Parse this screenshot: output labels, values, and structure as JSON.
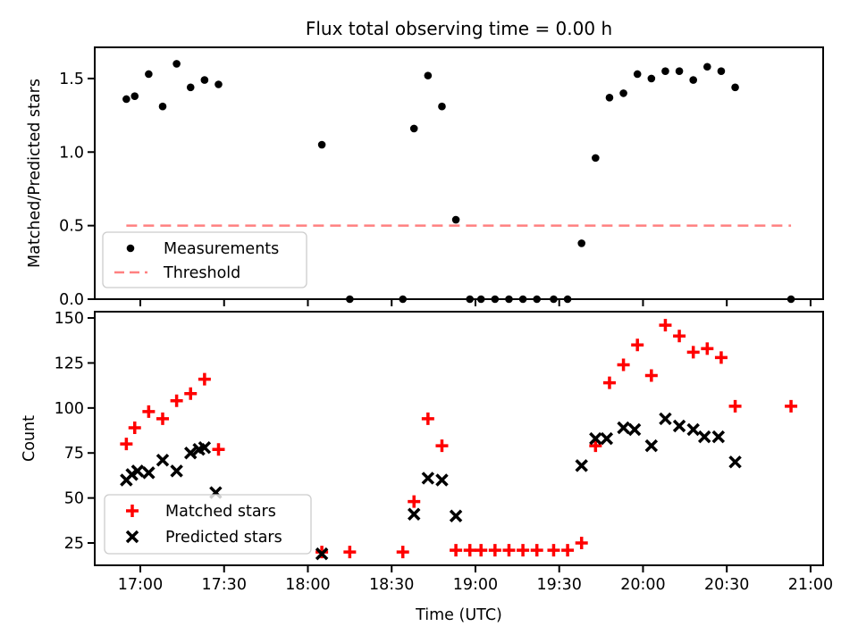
{
  "figure_title": "Flux total observing time = 0.00 h",
  "colors": {
    "measurement": "#000000",
    "threshold": "#ff8080",
    "matched": "#ff0000",
    "predicted": "#000000",
    "axis": "#000000",
    "legend_border": "#cccccc"
  },
  "x_axis": {
    "label": "Time (UTC)",
    "ticks": [
      "17:00",
      "17:30",
      "18:00",
      "18:30",
      "19:00",
      "19:30",
      "20:00",
      "20:30",
      "21:00"
    ]
  },
  "chart_data": [
    {
      "type": "scatter",
      "title": "Flux total observing time = 0.00 h",
      "ylabel": "Matched/Predicted stars",
      "xlim_hours": [
        16.728,
        21.075
      ],
      "ylim": [
        0,
        1.712
      ],
      "ytick_values": [
        0.0,
        0.5,
        1.0,
        1.5
      ],
      "ytick_labels": [
        "0.0",
        "0.5",
        "1.0",
        "1.5"
      ],
      "grid": false,
      "legend_position": "lower left",
      "series": [
        {
          "name": "Measurements",
          "marker": "point",
          "color": "#000000",
          "points": [
            [
              "16:55",
              1.36
            ],
            [
              "16:58",
              1.38
            ],
            [
              "17:03",
              1.53
            ],
            [
              "17:08",
              1.31
            ],
            [
              "17:13",
              1.6
            ],
            [
              "17:18",
              1.44
            ],
            [
              "17:23",
              1.49
            ],
            [
              "17:28",
              1.46
            ],
            [
              "18:05",
              1.05
            ],
            [
              "18:15",
              0.0
            ],
            [
              "18:34",
              0.0
            ],
            [
              "18:38",
              1.16
            ],
            [
              "18:43",
              1.52
            ],
            [
              "18:48",
              1.31
            ],
            [
              "18:53",
              0.54
            ],
            [
              "18:58",
              0.0
            ],
            [
              "19:02",
              0.0
            ],
            [
              "19:07",
              0.0
            ],
            [
              "19:12",
              0.0
            ],
            [
              "19:17",
              0.0
            ],
            [
              "19:22",
              0.0
            ],
            [
              "19:28",
              0.0
            ],
            [
              "19:33",
              0.0
            ],
            [
              "19:38",
              0.38
            ],
            [
              "19:43",
              0.96
            ],
            [
              "19:48",
              1.37
            ],
            [
              "19:53",
              1.4
            ],
            [
              "19:58",
              1.53
            ],
            [
              "20:03",
              1.5
            ],
            [
              "20:08",
              1.55
            ],
            [
              "20:13",
              1.55
            ],
            [
              "20:18",
              1.49
            ],
            [
              "20:23",
              1.58
            ],
            [
              "20:28",
              1.55
            ],
            [
              "20:33",
              1.44
            ],
            [
              "20:53",
              0.0
            ]
          ]
        },
        {
          "name": "Threshold",
          "marker": "dashed-line",
          "color": "#ff8080",
          "hline": 0.5,
          "span": [
            "16:55",
            "20:53"
          ]
        }
      ]
    },
    {
      "type": "scatter",
      "title": "",
      "ylabel": "Count",
      "xlabel": "Time (UTC)",
      "xlim_hours": [
        16.728,
        21.075
      ],
      "ylim": [
        12.6,
        153.5
      ],
      "ytick_values": [
        25,
        50,
        75,
        100,
        125,
        150
      ],
      "ytick_labels": [
        "25",
        "50",
        "75",
        "100",
        "125",
        "150"
      ],
      "grid": false,
      "legend_position": "lower left",
      "series": [
        {
          "name": "Matched stars",
          "marker": "plus",
          "color": "#ff0000",
          "points": [
            [
              "16:55",
              80
            ],
            [
              "16:58",
              89
            ],
            [
              "17:03",
              98
            ],
            [
              "17:08",
              94
            ],
            [
              "17:13",
              104
            ],
            [
              "17:18",
              108
            ],
            [
              "17:23",
              116
            ],
            [
              "17:28",
              77
            ],
            [
              "18:05",
              20
            ],
            [
              "18:15",
              20
            ],
            [
              "18:34",
              20
            ],
            [
              "18:38",
              48
            ],
            [
              "18:43",
              94
            ],
            [
              "18:48",
              79
            ],
            [
              "18:53",
              21
            ],
            [
              "18:58",
              21
            ],
            [
              "19:02",
              21
            ],
            [
              "19:07",
              21
            ],
            [
              "19:12",
              21
            ],
            [
              "19:17",
              21
            ],
            [
              "19:22",
              21
            ],
            [
              "19:28",
              21
            ],
            [
              "19:33",
              21
            ],
            [
              "19:38",
              25
            ],
            [
              "19:43",
              79
            ],
            [
              "19:48",
              114
            ],
            [
              "19:53",
              124
            ],
            [
              "19:58",
              135
            ],
            [
              "20:03",
              118
            ],
            [
              "20:08",
              146
            ],
            [
              "20:13",
              140
            ],
            [
              "20:18",
              131
            ],
            [
              "20:23",
              133
            ],
            [
              "20:28",
              128
            ],
            [
              "20:33",
              101
            ],
            [
              "20:53",
              101
            ]
          ]
        },
        {
          "name": "Predicted stars",
          "marker": "x",
          "color": "#000000",
          "points": [
            [
              "16:55",
              60
            ],
            [
              "16:57",
              63
            ],
            [
              "16:59",
              65
            ],
            [
              "17:03",
              64
            ],
            [
              "17:08",
              71
            ],
            [
              "17:13",
              65
            ],
            [
              "17:18",
              75
            ],
            [
              "17:21",
              77
            ],
            [
              "17:23",
              78
            ],
            [
              "17:27",
              53
            ],
            [
              "18:05",
              19
            ],
            [
              "18:38",
              41
            ],
            [
              "18:43",
              61
            ],
            [
              "18:48",
              60
            ],
            [
              "18:53",
              40
            ],
            [
              "19:38",
              68
            ],
            [
              "19:43",
              83
            ],
            [
              "19:47",
              83
            ],
            [
              "19:53",
              89
            ],
            [
              "19:57",
              88
            ],
            [
              "20:03",
              79
            ],
            [
              "20:08",
              94
            ],
            [
              "20:13",
              90
            ],
            [
              "20:18",
              88
            ],
            [
              "20:22",
              84
            ],
            [
              "20:27",
              84
            ],
            [
              "20:33",
              70
            ]
          ]
        }
      ]
    }
  ]
}
